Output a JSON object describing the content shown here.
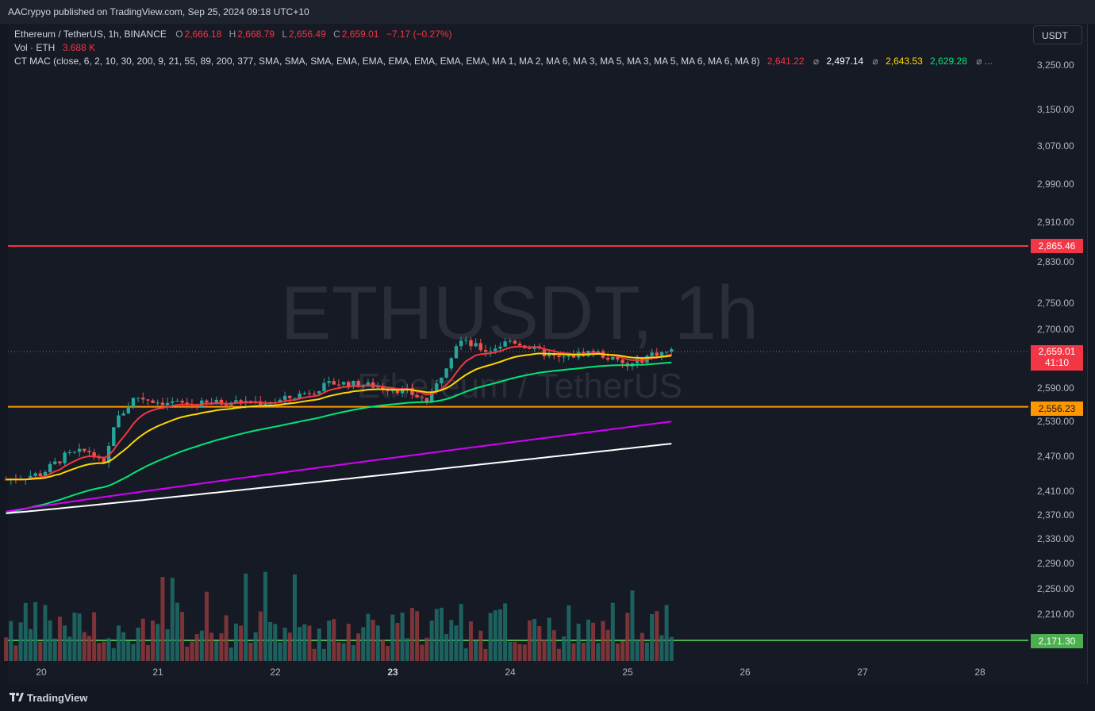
{
  "header": {
    "published_by": "AACrypyo published on TradingView.com, Sep 25, 2024 09:18 UTC+10"
  },
  "legend": {
    "symbol": "Ethereum / TetherUS, 1h, BINANCE",
    "o_label": "O",
    "o_value": "2,666.18",
    "h_label": "H",
    "h_value": "2,668.79",
    "l_label": "L",
    "l_value": "2,656.49",
    "c_label": "C",
    "c_value": "2,659.01",
    "change": "−7.17 (−0.27%)",
    "vol_label": "Vol · ETH",
    "vol_value": "3.688 K",
    "indicator": "CT MAC (close, 6, 2, 10, 30, 200, 9, 21, 55, 89, 200, 377, SMA, SMA, SMA, EMA, EMA, EMA, EMA, EMA, EMA, MA 1, MA 2, MA 6, MA 3, MA 5, MA 3, MA 5, MA 6, MA 6, MA 8)",
    "ind_v1": "2,641.22",
    "ind_v2": "2,497.14",
    "ind_v3": "2,643.53",
    "ind_v4": "2,629.28",
    "sym_glyph": "⌀",
    "ellipsis": "⌀ ..."
  },
  "currency_button": "USDT",
  "watermark": {
    "line1": "ETHUSDT, 1h",
    "line2": "Ethereum / TetherUS"
  },
  "y_axis": [
    "3,250.00",
    "3,150.00",
    "3,070.00",
    "2,990.00",
    "2,910.00",
    "2,830.00",
    "2,750.00",
    "2,700.00",
    "2,590.00",
    "2,530.00",
    "2,470.00",
    "2,410.00",
    "2,370.00",
    "2,330.00",
    "2,290.00",
    "2,250.00",
    "2,210.00"
  ],
  "x_axis": [
    "20",
    "21",
    "22",
    "23",
    "24",
    "25",
    "26",
    "27",
    "28"
  ],
  "price_tags": {
    "resistance": "2,865.46",
    "last_price": "2,659.01",
    "countdown": "41:10",
    "support": "2,556.23",
    "volume_line": "2,171.30"
  },
  "colors": {
    "up": "#26a69a",
    "down": "#ef5350",
    "resistance": "#f23645",
    "support": "#ff9800",
    "volume_line": "#4caf50",
    "ema_fast": "#f23645",
    "ema_mid": "#ffd600",
    "ema_slow": "#00e676",
    "ma_purple": "#d500f9",
    "ma_white": "#ffffff"
  },
  "chart_data": {
    "type": "candlestick",
    "symbol": "ETHUSDT",
    "interval": "1h",
    "x_range": [
      "20",
      "28"
    ],
    "y_range": [
      2171.3,
      3250.0
    ],
    "horizontal_levels": [
      2865.46,
      2556.23,
      2171.3
    ],
    "last_close": 2659.01,
    "price_path": [
      {
        "day": 19.7,
        "price": 2430
      },
      {
        "day": 20.0,
        "price": 2440
      },
      {
        "day": 20.2,
        "price": 2470
      },
      {
        "day": 20.4,
        "price": 2480
      },
      {
        "day": 20.55,
        "price": 2450
      },
      {
        "day": 20.6,
        "price": 2520
      },
      {
        "day": 20.8,
        "price": 2575
      },
      {
        "day": 21.0,
        "price": 2565
      },
      {
        "day": 21.3,
        "price": 2560
      },
      {
        "day": 21.6,
        "price": 2565
      },
      {
        "day": 22.0,
        "price": 2565
      },
      {
        "day": 22.3,
        "price": 2585
      },
      {
        "day": 22.5,
        "price": 2600
      },
      {
        "day": 22.8,
        "price": 2595
      },
      {
        "day": 23.1,
        "price": 2585
      },
      {
        "day": 23.3,
        "price": 2565
      },
      {
        "day": 23.55,
        "price": 2680
      },
      {
        "day": 23.8,
        "price": 2660
      },
      {
        "day": 24.0,
        "price": 2680
      },
      {
        "day": 24.4,
        "price": 2645
      },
      {
        "day": 24.7,
        "price": 2660
      },
      {
        "day": 25.0,
        "price": 2630
      },
      {
        "day": 25.2,
        "price": 2655
      },
      {
        "day": 25.38,
        "price": 2659.01
      }
    ]
  }
}
